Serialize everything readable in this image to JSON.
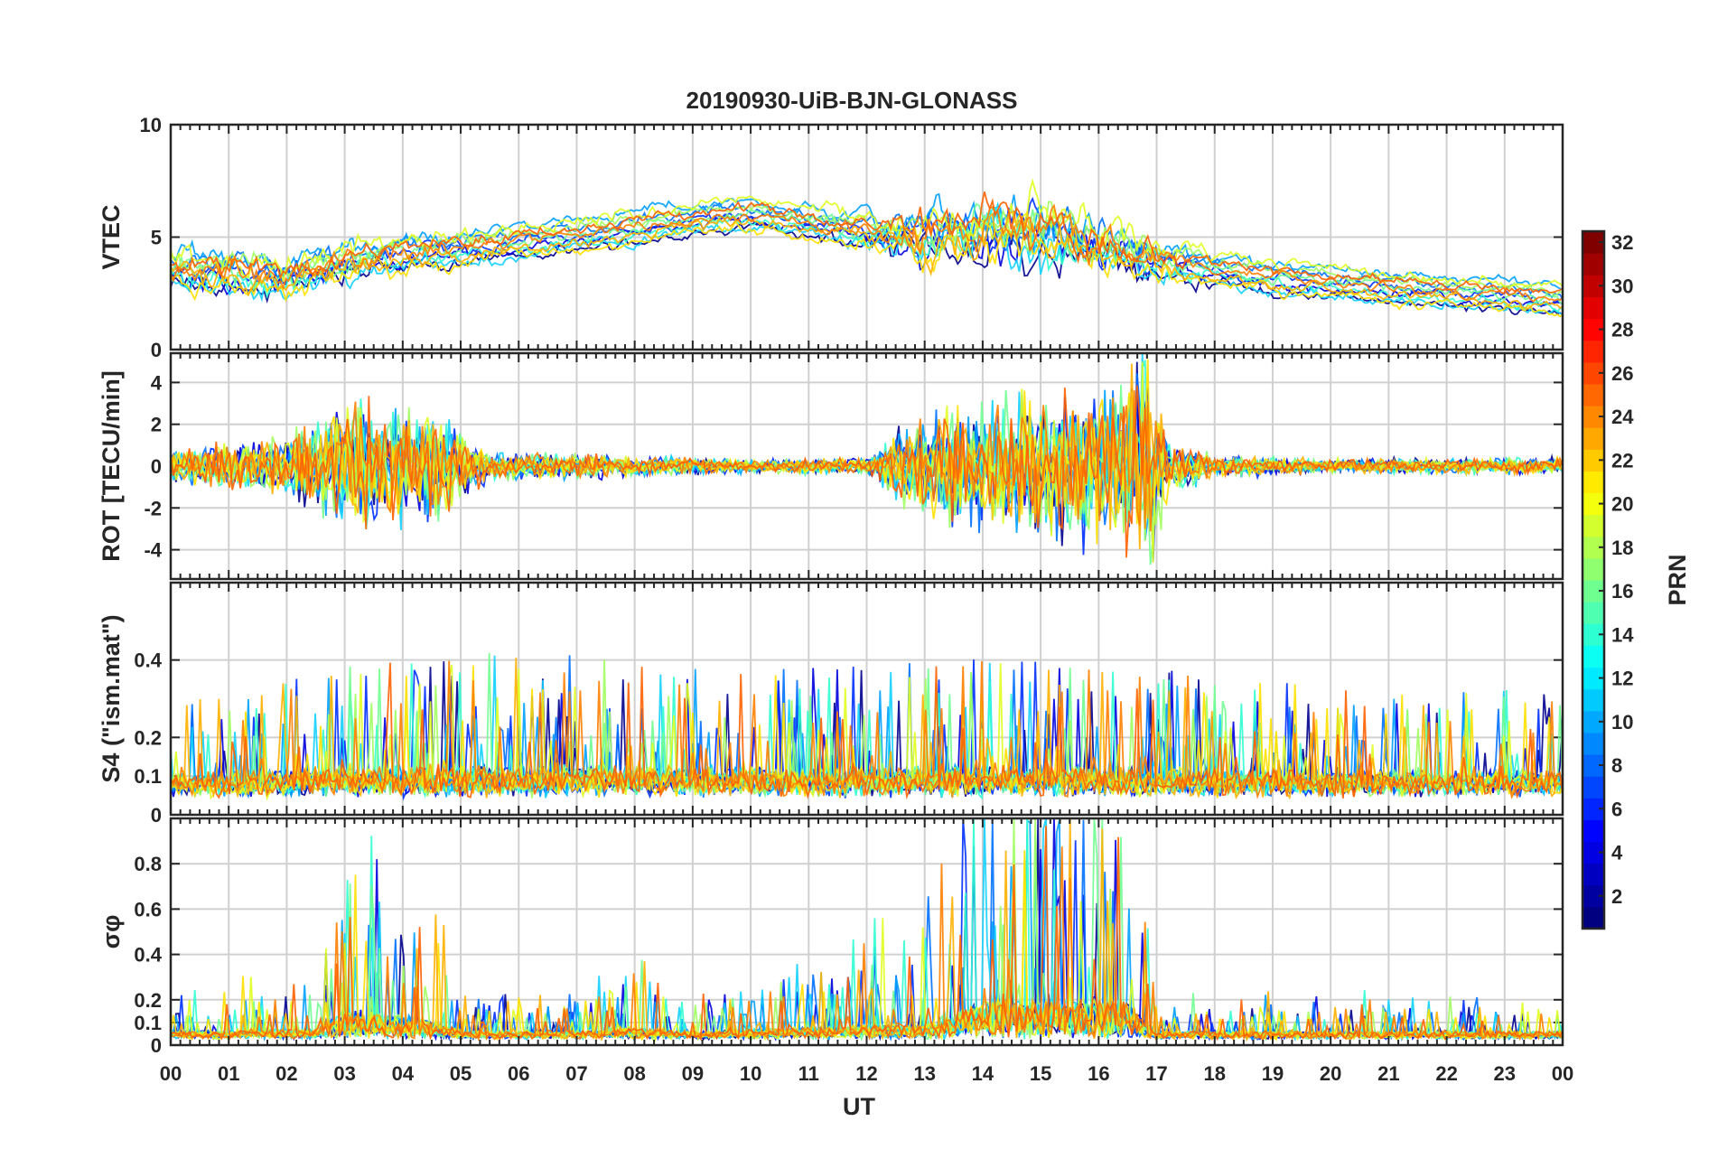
{
  "chart_data": {
    "type": "line",
    "title": "20190930-UiB-BJN-GLONASS",
    "xlabel": "UT",
    "x_ticks": [
      "00",
      "01",
      "02",
      "03",
      "04",
      "05",
      "06",
      "07",
      "08",
      "09",
      "10",
      "11",
      "12",
      "13",
      "14",
      "15",
      "16",
      "17",
      "18",
      "19",
      "20",
      "21",
      "22",
      "23",
      "00"
    ],
    "xlim": [
      0,
      24
    ],
    "grid": true,
    "panels": [
      {
        "ylabel": "VTEC",
        "ylim": [
          0,
          10
        ],
        "yticks": [
          0,
          5,
          10
        ],
        "baseline": [
          [
            0,
            3.6
          ],
          [
            1,
            3.4
          ],
          [
            2,
            3.2
          ],
          [
            3,
            4.0
          ],
          [
            4,
            4.3
          ],
          [
            5,
            4.5
          ],
          [
            6,
            4.8
          ],
          [
            7,
            5.1
          ],
          [
            8,
            5.4
          ],
          [
            9,
            5.8
          ],
          [
            10,
            6.0
          ],
          [
            11,
            5.7
          ],
          [
            12,
            5.2
          ],
          [
            13,
            5.0
          ],
          [
            14,
            5.5
          ],
          [
            15,
            5.2
          ],
          [
            16,
            4.6
          ],
          [
            17,
            4.0
          ],
          [
            18,
            3.6
          ],
          [
            19,
            3.2
          ],
          [
            20,
            3.0
          ],
          [
            21,
            2.8
          ],
          [
            22,
            2.6
          ],
          [
            23,
            2.4
          ],
          [
            24,
            2.2
          ]
        ],
        "noise": [
          [
            0,
            1.2
          ],
          [
            2,
            1.4
          ],
          [
            4,
            1.0
          ],
          [
            6,
            0.6
          ],
          [
            8,
            0.6
          ],
          [
            10,
            0.5
          ],
          [
            12,
            0.8
          ],
          [
            13,
            2.0
          ],
          [
            15,
            2.6
          ],
          [
            16.8,
            1.5
          ],
          [
            18,
            0.6
          ],
          [
            20,
            0.5
          ],
          [
            24,
            0.5
          ]
        ]
      },
      {
        "ylabel": "ROT [TECU/min]",
        "ylim": [
          -5.4,
          5.4
        ],
        "yticks": [
          -4,
          -2,
          0,
          2,
          4
        ],
        "baseline": [
          [
            0,
            0
          ],
          [
            24,
            0
          ]
        ],
        "noise": [
          [
            0,
            0.6
          ],
          [
            2,
            1.0
          ],
          [
            3,
            2.2
          ],
          [
            4.5,
            2.0
          ],
          [
            5.5,
            0.5
          ],
          [
            8,
            0.35
          ],
          [
            10,
            0.25
          ],
          [
            12,
            0.3
          ],
          [
            13,
            2.0
          ],
          [
            15,
            2.8
          ],
          [
            16.2,
            3.0
          ],
          [
            16.8,
            4.5
          ],
          [
            17.2,
            1.0
          ],
          [
            18,
            0.4
          ],
          [
            20,
            0.25
          ],
          [
            24,
            0.3
          ]
        ]
      },
      {
        "ylabel": "S4 (\"ism.mat\")",
        "ylim": [
          0,
          0.6
        ],
        "yticks": [
          0,
          0.1,
          0.2,
          0.4
        ],
        "baseline": [
          [
            0,
            0.07
          ],
          [
            24,
            0.07
          ]
        ],
        "noise": [
          [
            0,
            0.08
          ],
          [
            3,
            0.12
          ],
          [
            6,
            0.14
          ],
          [
            9,
            0.12
          ],
          [
            12,
            0.12
          ],
          [
            14,
            0.13
          ],
          [
            17,
            0.12
          ],
          [
            20,
            0.1
          ],
          [
            24,
            0.1
          ]
        ]
      },
      {
        "ylabel": "σφ",
        "ylim": [
          0,
          1
        ],
        "yticks": [
          0,
          0.1,
          0.2,
          0.4,
          0.6,
          0.8
        ],
        "baseline": [
          [
            0,
            0.04
          ],
          [
            24,
            0.04
          ]
        ],
        "noise": [
          [
            0,
            0.05
          ],
          [
            2.5,
            0.08
          ],
          [
            3,
            0.3
          ],
          [
            4.5,
            0.2
          ],
          [
            5,
            0.05
          ],
          [
            7,
            0.06
          ],
          [
            8,
            0.1
          ],
          [
            9,
            0.05
          ],
          [
            13,
            0.15
          ],
          [
            14,
            0.4
          ],
          [
            16.5,
            0.4
          ],
          [
            17,
            0.05
          ],
          [
            24,
            0.05
          ]
        ]
      }
    ],
    "colorbar": {
      "label": "PRN",
      "range": [
        1,
        32
      ],
      "ticks": [
        2,
        4,
        6,
        8,
        10,
        12,
        14,
        16,
        18,
        20,
        22,
        24,
        26,
        28,
        30,
        32
      ],
      "colormap": "jet"
    },
    "series": [
      {
        "prn": 1,
        "color": "#00008f"
      },
      {
        "prn": 3,
        "color": "#0000df"
      },
      {
        "prn": 5,
        "color": "#0030ff"
      },
      {
        "prn": 7,
        "color": "#0070ff"
      },
      {
        "prn": 9,
        "color": "#00a0ff"
      },
      {
        "prn": 11,
        "color": "#10d0ff"
      },
      {
        "prn": 13,
        "color": "#30ffd0"
      },
      {
        "prn": 15,
        "color": "#70ff90"
      },
      {
        "prn": 17,
        "color": "#a0ff60"
      },
      {
        "prn": 19,
        "color": "#e0ff20"
      },
      {
        "prn": 20,
        "color": "#ffe000"
      },
      {
        "prn": 21,
        "color": "#ffb000"
      },
      {
        "prn": 23,
        "color": "#ff8000"
      },
      {
        "prn": 24,
        "color": "#ff6000"
      }
    ]
  }
}
